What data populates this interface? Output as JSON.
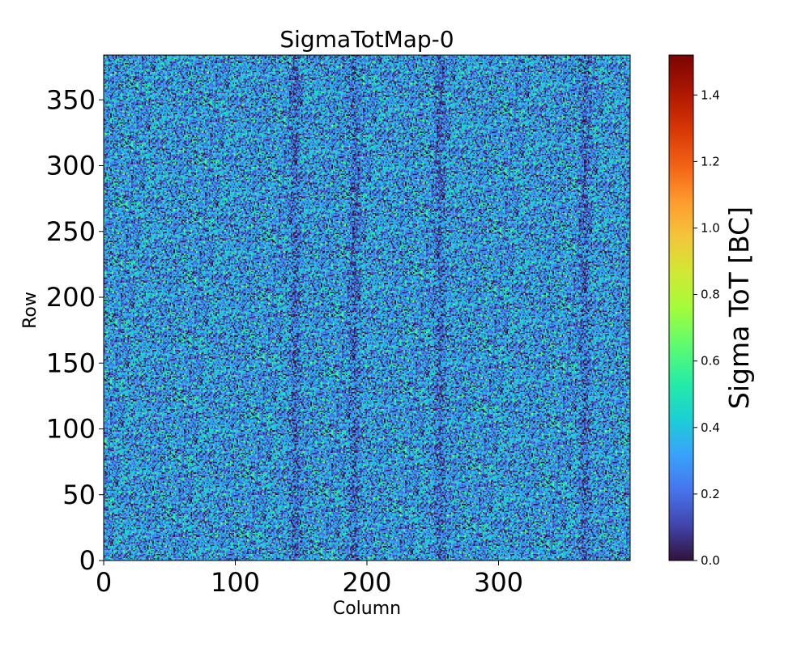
{
  "chart_data": {
    "type": "heatmap",
    "title": "SigmaTotMap-0",
    "xlabel": "Column",
    "ylabel": "Row",
    "xlim": [
      0,
      400
    ],
    "ylim": [
      0,
      384
    ],
    "x_ticks": [
      0,
      100,
      200,
      300
    ],
    "x_tick_labels": [
      "0",
      "100",
      "200",
      "300"
    ],
    "y_ticks": [
      0,
      50,
      100,
      150,
      200,
      250,
      300,
      350
    ],
    "y_tick_labels": [
      "0",
      "50",
      "100",
      "150",
      "200",
      "250",
      "300",
      "350"
    ],
    "colormap": "turbo",
    "colorbar": {
      "label": "Sigma ToT [BC]",
      "range": [
        0.0,
        1.52
      ],
      "ticks": [
        0.0,
        0.2,
        0.4,
        0.6,
        0.8,
        1.0,
        1.2,
        1.4
      ],
      "tick_labels": [
        "0.0",
        "0.2",
        "0.4",
        "0.6",
        "0.8",
        "1.0",
        "1.2",
        "1.4"
      ]
    },
    "value_distribution": {
      "typical_range": [
        0.0,
        0.5
      ],
      "mean": 0.3,
      "description_of_darker_vertical_bands_at_columns": [
        145,
        190,
        255,
        365
      ]
    },
    "colormap_stops": [
      {
        "v": 0.0,
        "color": "#30123b"
      },
      {
        "v": 0.07,
        "color": "#4145ab"
      },
      {
        "v": 0.14,
        "color": "#4675ed"
      },
      {
        "v": 0.21,
        "color": "#39a2fc"
      },
      {
        "v": 0.28,
        "color": "#1bcfd4"
      },
      {
        "v": 0.35,
        "color": "#24eca6"
      },
      {
        "v": 0.43,
        "color": "#61fc6c"
      },
      {
        "v": 0.5,
        "color": "#a4fc3b"
      },
      {
        "v": 0.57,
        "color": "#d1e834"
      },
      {
        "v": 0.64,
        "color": "#f3c63a"
      },
      {
        "v": 0.71,
        "color": "#fe9b2d"
      },
      {
        "v": 0.78,
        "color": "#f36315"
      },
      {
        "v": 0.85,
        "color": "#d93806"
      },
      {
        "v": 0.92,
        "color": "#b11901"
      },
      {
        "v": 1.0,
        "color": "#7a0403"
      }
    ]
  }
}
